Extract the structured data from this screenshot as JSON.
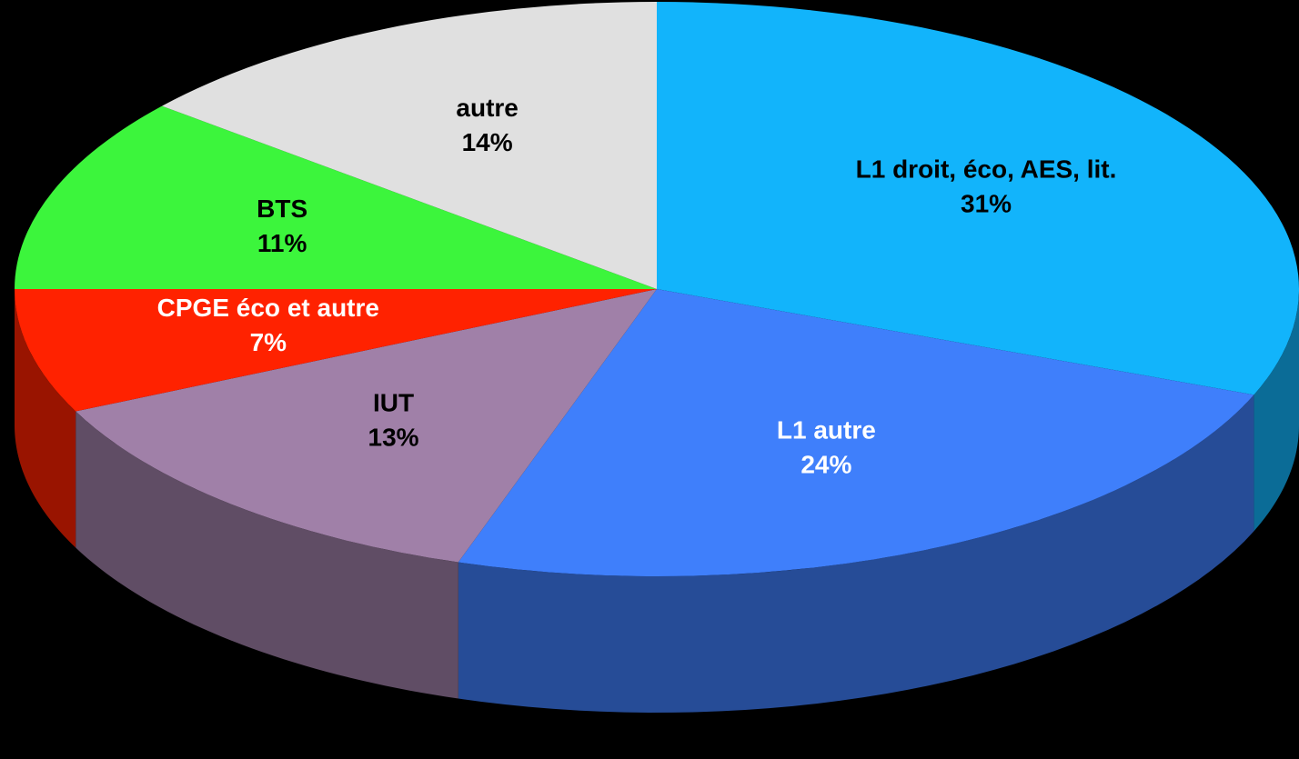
{
  "chart_data": {
    "type": "pie",
    "categories": [
      "L1 droit, éco, AES, lit.",
      "L1 autre",
      "IUT",
      "CPGE éco et autre",
      "BTS",
      "autre"
    ],
    "values": [
      31,
      24,
      13,
      7,
      11,
      14
    ],
    "value_labels": [
      "31%",
      "24%",
      "13%",
      "7%",
      "11%",
      "14%"
    ],
    "colors": [
      "#12b4fb",
      "#3f7ffb",
      "#a080a8",
      "#ff2200",
      "#3cf53c",
      "#e0e0e0"
    ]
  }
}
